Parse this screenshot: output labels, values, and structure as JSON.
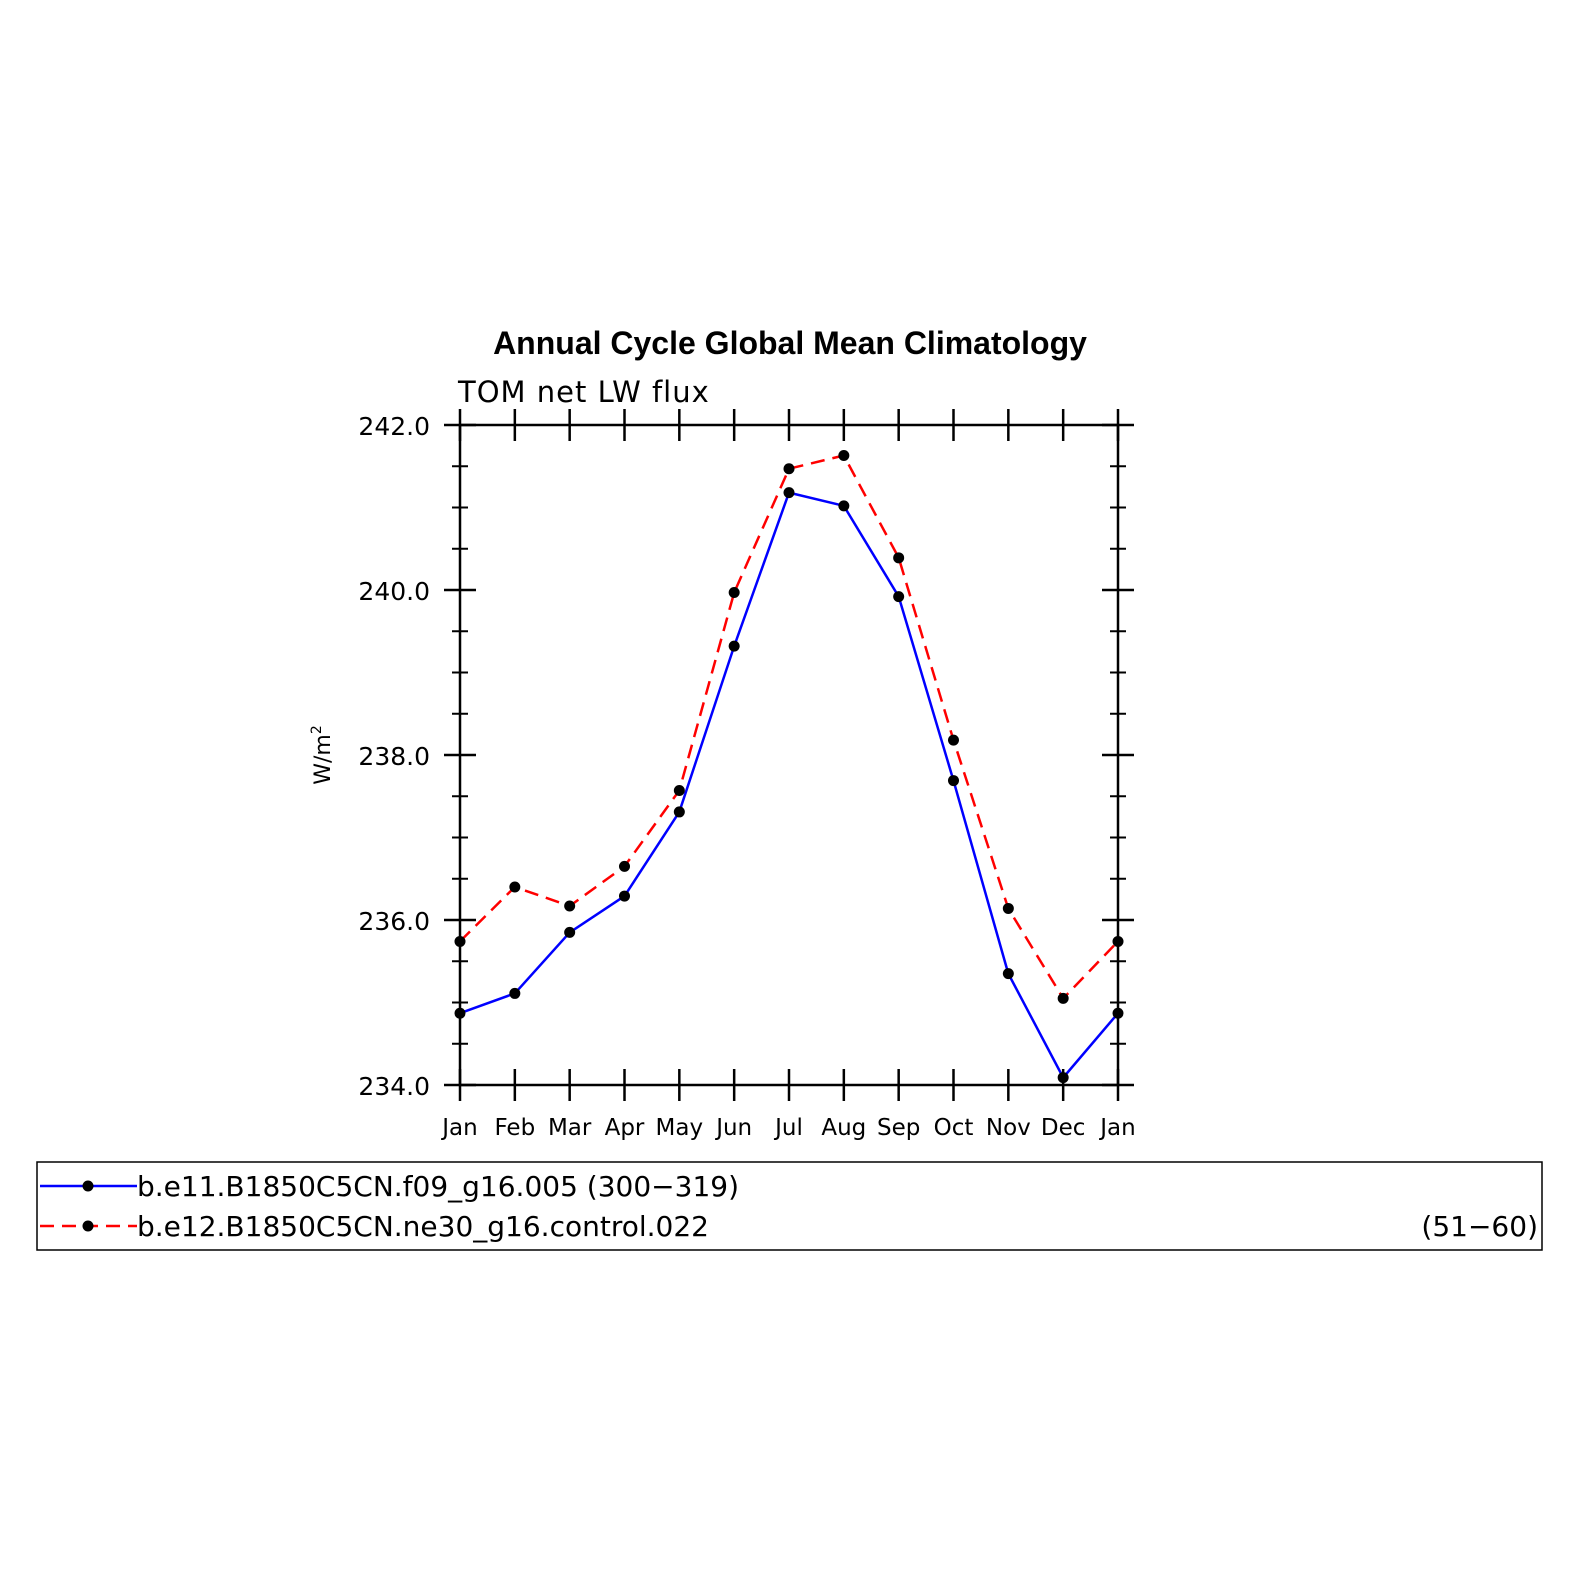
{
  "chart_data": {
    "type": "line",
    "title": "Annual Cycle Global Mean Climatology",
    "subtitle": "TOM net LW flux",
    "ylabel": "W/m",
    "ylabel_superscript": "2",
    "xlabel": "",
    "categories": [
      "Jan",
      "Feb",
      "Mar",
      "Apr",
      "May",
      "Jun",
      "Jul",
      "Aug",
      "Sep",
      "Oct",
      "Nov",
      "Dec",
      "Jan"
    ],
    "ylim": [
      234.0,
      242.0
    ],
    "yticks": [
      234.0,
      236.0,
      238.0,
      240.0,
      242.0
    ],
    "ytick_labels": [
      "234.0",
      "236.0",
      "238.0",
      "240.0",
      "242.0"
    ],
    "grid": false,
    "legend_position": "bottom",
    "series": [
      {
        "name": "b.e11.B1850C5CN.f09_g16.005",
        "period": "(300−319)",
        "color": "#0000ff",
        "dash": "solid",
        "values": [
          234.87,
          235.11,
          235.85,
          236.29,
          237.31,
          239.32,
          241.18,
          241.02,
          239.92,
          237.69,
          235.35,
          234.09,
          234.87
        ]
      },
      {
        "name": "b.e12.B1850C5CN.ne30_g16.control.022",
        "period": "(51−60)",
        "color": "#ff0000",
        "dash": "dashed",
        "values": [
          235.74,
          236.4,
          236.17,
          236.65,
          237.57,
          239.97,
          241.47,
          241.63,
          240.39,
          238.18,
          236.14,
          235.05,
          235.74
        ]
      }
    ],
    "marker_color": "#000000"
  }
}
